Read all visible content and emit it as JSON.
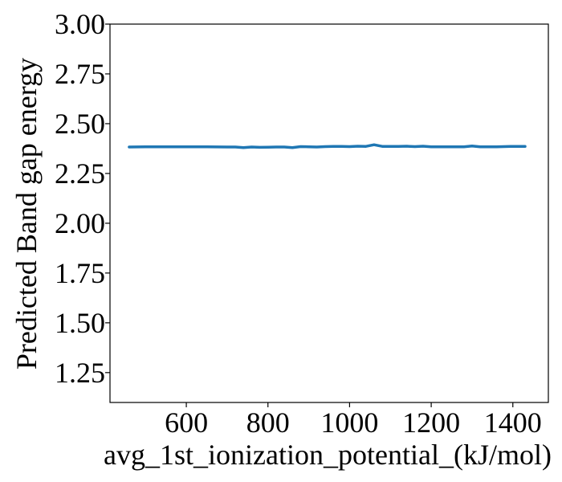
{
  "chart_data": {
    "type": "line",
    "title": "",
    "xlabel": "avg_1st_ionization_potential_(kJ/mol)",
    "ylabel": "Predicted Band gap energy",
    "xlim": [
      413,
      1487
    ],
    "ylim": [
      1.1,
      3.0
    ],
    "xticks": [
      600,
      800,
      1000,
      1200,
      1400
    ],
    "xtick_labels": [
      "600",
      "800",
      "1000",
      "1200",
      "1400"
    ],
    "yticks": [
      1.25,
      1.5,
      1.75,
      2.0,
      2.25,
      2.5,
      2.75,
      3.0
    ],
    "ytick_labels": [
      "1.25",
      "1.50",
      "1.75",
      "2.00",
      "2.25",
      "2.50",
      "2.75",
      "3.00"
    ],
    "grid": false,
    "legend": "none",
    "line_color": "#1f77b4",
    "series": [
      {
        "x": [
          460,
          500,
          550,
          600,
          650,
          700,
          720,
          740,
          760,
          780,
          800,
          820,
          840,
          860,
          880,
          900,
          920,
          940,
          960,
          980,
          1000,
          1020,
          1040,
          1060,
          1080,
          1100,
          1120,
          1140,
          1160,
          1180,
          1200,
          1240,
          1280,
          1300,
          1320,
          1360,
          1400,
          1430
        ],
        "y": [
          2.383,
          2.384,
          2.384,
          2.384,
          2.384,
          2.383,
          2.383,
          2.38,
          2.383,
          2.381,
          2.382,
          2.383,
          2.383,
          2.38,
          2.385,
          2.384,
          2.383,
          2.385,
          2.386,
          2.386,
          2.385,
          2.387,
          2.386,
          2.394,
          2.386,
          2.386,
          2.386,
          2.387,
          2.385,
          2.387,
          2.384,
          2.384,
          2.384,
          2.388,
          2.384,
          2.384,
          2.386,
          2.386
        ]
      }
    ]
  }
}
